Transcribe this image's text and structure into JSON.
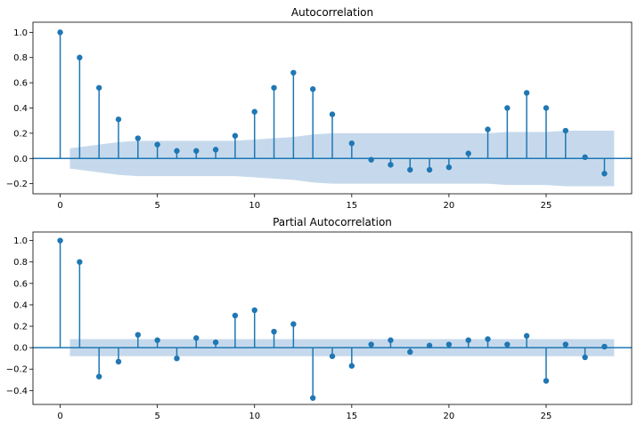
{
  "colors": {
    "stem": "#1f77b4",
    "band": "#c6d9ec",
    "axis": "#000000",
    "baseline": "#1f77b4"
  },
  "chart_data": [
    {
      "type": "stem",
      "title": "Autocorrelation",
      "xlim": [
        -1.4,
        29.4
      ],
      "ylim": [
        -0.28,
        1.08
      ],
      "xticks": [
        0,
        5,
        10,
        15,
        20,
        25
      ],
      "xtick_labels": [
        "0",
        "5",
        "10",
        "15",
        "20",
        "25"
      ],
      "yticks": [
        -0.2,
        0.0,
        0.2,
        0.4,
        0.6,
        0.8,
        1.0
      ],
      "ytick_labels": [
        "−0.2",
        "0.0",
        "0.2",
        "0.4",
        "0.6",
        "0.8",
        "1.0"
      ],
      "x": [
        0,
        1,
        2,
        3,
        4,
        5,
        6,
        7,
        8,
        9,
        10,
        11,
        12,
        13,
        14,
        15,
        16,
        17,
        18,
        19,
        20,
        21,
        22,
        23,
        24,
        25,
        26,
        27,
        28
      ],
      "values": [
        1.0,
        0.8,
        0.56,
        0.31,
        0.16,
        0.11,
        0.06,
        0.06,
        0.07,
        0.18,
        0.37,
        0.56,
        0.68,
        0.55,
        0.35,
        0.12,
        -0.01,
        -0.05,
        -0.09,
        -0.09,
        -0.07,
        0.04,
        0.23,
        0.4,
        0.52,
        0.4,
        0.22,
        0.01,
        -0.12
      ],
      "confidence_band": {
        "x": [
          0.5,
          1,
          2,
          3,
          4,
          5,
          6,
          7,
          8,
          9,
          10,
          11,
          12,
          13,
          14,
          15,
          16,
          17,
          18,
          19,
          20,
          21,
          22,
          23,
          24,
          25,
          26,
          27,
          28,
          28.5
        ],
        "upper": [
          0.08,
          0.09,
          0.11,
          0.13,
          0.14,
          0.14,
          0.14,
          0.14,
          0.14,
          0.14,
          0.15,
          0.16,
          0.17,
          0.19,
          0.2,
          0.2,
          0.2,
          0.2,
          0.2,
          0.2,
          0.2,
          0.2,
          0.2,
          0.21,
          0.21,
          0.21,
          0.22,
          0.22,
          0.22,
          0.22
        ]
      }
    },
    {
      "type": "stem",
      "title": "Partial Autocorrelation",
      "xlim": [
        -1.4,
        29.4
      ],
      "ylim": [
        -0.53,
        1.08
      ],
      "xticks": [
        0,
        5,
        10,
        15,
        20,
        25
      ],
      "xtick_labels": [
        "0",
        "5",
        "10",
        "15",
        "20",
        "25"
      ],
      "yticks": [
        -0.4,
        -0.2,
        0.0,
        0.2,
        0.4,
        0.6,
        0.8,
        1.0
      ],
      "ytick_labels": [
        "−0.4",
        "−0.2",
        "0.0",
        "0.2",
        "0.4",
        "0.6",
        "0.8",
        "1.0"
      ],
      "x": [
        0,
        1,
        2,
        3,
        4,
        5,
        6,
        7,
        8,
        9,
        10,
        11,
        12,
        13,
        14,
        15,
        16,
        17,
        18,
        19,
        20,
        21,
        22,
        23,
        24,
        25,
        26,
        27,
        28
      ],
      "values": [
        1.0,
        0.8,
        -0.27,
        -0.13,
        0.12,
        0.07,
        -0.1,
        0.09,
        0.05,
        0.3,
        0.35,
        0.15,
        0.22,
        -0.47,
        -0.08,
        -0.17,
        0.03,
        0.07,
        -0.04,
        0.02,
        0.03,
        0.07,
        0.08,
        0.03,
        0.11,
        -0.31,
        0.03,
        -0.09,
        0.01
      ],
      "confidence_band": {
        "x": [
          0.5,
          28.5
        ],
        "upper": [
          0.08,
          0.08
        ]
      }
    }
  ]
}
